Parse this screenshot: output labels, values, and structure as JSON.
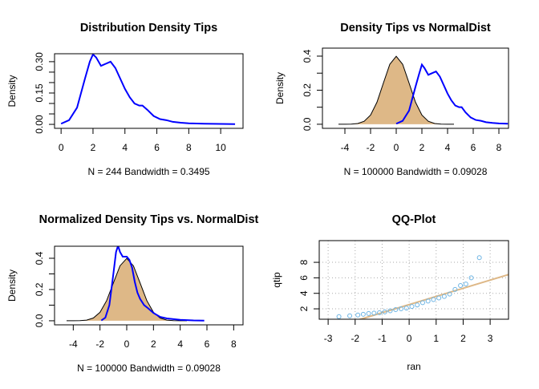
{
  "chart_data": [
    {
      "type": "line",
      "title": "Distribution Density Tips",
      "xlabel": "N = 244   Bandwidth = 0.3495",
      "ylabel": "Density",
      "xlim": [
        -0.41,
        11.4
      ],
      "ylim": [
        -0.019,
        0.338
      ],
      "xticks": [
        0,
        2,
        4,
        6,
        8,
        10
      ],
      "yticks": [
        {
          "value": 0,
          "label": "0.00"
        },
        {
          "value": 0.15,
          "label": "0.15"
        },
        {
          "value": 0.3,
          "label": "0.30"
        }
      ],
      "yminor": [
        0.05,
        0.1,
        0.2,
        0.25
      ],
      "series": [
        {
          "color": "#0000ff",
          "x": [
            0.0,
            0.5,
            1.0,
            1.5,
            1.8,
            2.0,
            2.2,
            2.5,
            2.8,
            3.1,
            3.4,
            3.7,
            4.0,
            4.3,
            4.6,
            4.9,
            5.1,
            5.4,
            5.8,
            6.2,
            6.6,
            7.0,
            7.5,
            8.0,
            9.0,
            10.0,
            10.9
          ],
          "values": [
            0.003,
            0.02,
            0.08,
            0.22,
            0.3,
            0.335,
            0.32,
            0.28,
            0.29,
            0.3,
            0.27,
            0.22,
            0.17,
            0.13,
            0.1,
            0.09,
            0.09,
            0.07,
            0.04,
            0.025,
            0.02,
            0.012,
            0.008,
            0.005,
            0.003,
            0.002,
            0.001
          ]
        }
      ]
    },
    {
      "type": "line",
      "title": "Density Tips vs NormalDist",
      "xlabel": "N = 100000   Bandwidth = 0.09028",
      "ylabel": "Density",
      "xlim": [
        -5.75,
        8.75
      ],
      "ylim": [
        -0.024,
        0.447
      ],
      "xticks": [
        -4,
        -2,
        0,
        2,
        4,
        6,
        8
      ],
      "yticks": [
        {
          "value": 0,
          "label": "0.0"
        },
        {
          "value": 0.2,
          "label": "0.2"
        },
        {
          "value": 0.4,
          "label": "0.4"
        }
      ],
      "yminor": [
        0.1,
        0.3
      ],
      "series": [
        {
          "color": "#000000",
          "fill": "#deb887",
          "x": [
            -4.5,
            -4,
            -3.5,
            -3,
            -2.5,
            -2,
            -1.5,
            -1,
            -0.5,
            0,
            0.5,
            1,
            1.5,
            2,
            2.5,
            3,
            3.5,
            4,
            4.5
          ],
          "values": [
            0,
            0.0001,
            0.0009,
            0.0044,
            0.0175,
            0.054,
            0.1295,
            0.242,
            0.3521,
            0.3989,
            0.3521,
            0.242,
            0.1295,
            0.054,
            0.0175,
            0.0044,
            0.0009,
            0.0001,
            0
          ]
        },
        {
          "color": "#0000ff",
          "x": [
            0.0,
            0.5,
            1.0,
            1.5,
            1.8,
            2.0,
            2.2,
            2.5,
            2.8,
            3.1,
            3.4,
            3.7,
            4.0,
            4.3,
            4.6,
            4.9,
            5.1,
            5.4,
            5.8,
            6.2,
            6.6,
            7.0,
            7.5,
            8.0,
            8.7
          ],
          "values": [
            0.003,
            0.02,
            0.08,
            0.22,
            0.3,
            0.35,
            0.33,
            0.29,
            0.3,
            0.31,
            0.28,
            0.23,
            0.18,
            0.14,
            0.11,
            0.1,
            0.1,
            0.07,
            0.04,
            0.025,
            0.02,
            0.012,
            0.008,
            0.005,
            0.003
          ]
        }
      ]
    },
    {
      "type": "line",
      "title": "Normalized Density Tips vs. NormalDist",
      "xlabel": "N = 100000   Bandwidth = 0.09028",
      "ylabel": "Density",
      "xlim": [
        -5.4,
        8.7
      ],
      "ylim": [
        -0.026,
        0.477
      ],
      "xticks": [
        -4,
        -2,
        0,
        2,
        4,
        6,
        8
      ],
      "yticks": [
        {
          "value": 0,
          "label": "0.0"
        },
        {
          "value": 0.2,
          "label": "0.2"
        },
        {
          "value": 0.4,
          "label": "0.4"
        }
      ],
      "yminor": [
        0.1,
        0.3
      ],
      "series": [
        {
          "color": "#000000",
          "fill": "#deb887",
          "x": [
            -4.5,
            -4,
            -3.5,
            -3,
            -2.5,
            -2,
            -1.5,
            -1,
            -0.5,
            0,
            0.5,
            1,
            1.5,
            2,
            2.5,
            3,
            3.5,
            4,
            4.5
          ],
          "values": [
            0,
            0.0001,
            0.0009,
            0.0044,
            0.0175,
            0.054,
            0.1295,
            0.242,
            0.3521,
            0.3989,
            0.3521,
            0.242,
            0.1295,
            0.054,
            0.0175,
            0.0044,
            0.0009,
            0.0001,
            0
          ]
        },
        {
          "color": "#0000ff",
          "x": [
            -1.9,
            -1.6,
            -1.3,
            -1.0,
            -0.8,
            -0.65,
            -0.5,
            -0.3,
            0,
            0.2,
            0.4,
            0.6,
            0.8,
            1.0,
            1.3,
            1.6,
            2.0,
            2.5,
            3.0,
            4.0,
            5.0,
            5.8
          ],
          "values": [
            0.002,
            0.02,
            0.1,
            0.3,
            0.44,
            0.48,
            0.44,
            0.41,
            0.41,
            0.39,
            0.34,
            0.25,
            0.18,
            0.14,
            0.1,
            0.08,
            0.05,
            0.025,
            0.015,
            0.006,
            0.002,
            0.001
          ]
        }
      ]
    },
    {
      "type": "scatter",
      "title": "QQ-Plot",
      "xlabel": "ran",
      "ylabel": "qtip",
      "xlim": [
        -3.33,
        3.68
      ],
      "ylim": [
        0.66,
        10.8
      ],
      "xticks": [
        -3,
        -2,
        -1,
        0,
        1,
        2,
        3
      ],
      "yticks": [
        2,
        4,
        6,
        8
      ],
      "grid": true,
      "fit_line": {
        "intercept": 2.55,
        "slope": 1.05,
        "color": "#deb887"
      },
      "series": [
        {
          "color": "#6cb4e4",
          "x": [
            -2.6,
            -2.2,
            -1.9,
            -1.7,
            -1.5,
            -1.3,
            -1.1,
            -0.9,
            -0.7,
            -0.5,
            -0.3,
            -0.1,
            0.1,
            0.3,
            0.5,
            0.7,
            0.9,
            1.1,
            1.3,
            1.5,
            1.7,
            1.9,
            2.1,
            2.3,
            2.6
          ],
          "values": [
            1.0,
            1.1,
            1.2,
            1.3,
            1.4,
            1.45,
            1.5,
            1.6,
            1.75,
            1.9,
            2.0,
            2.1,
            2.3,
            2.5,
            2.8,
            3.0,
            3.2,
            3.4,
            3.6,
            3.9,
            4.5,
            5.0,
            5.2,
            6.0,
            8.6
          ]
        }
      ]
    }
  ]
}
